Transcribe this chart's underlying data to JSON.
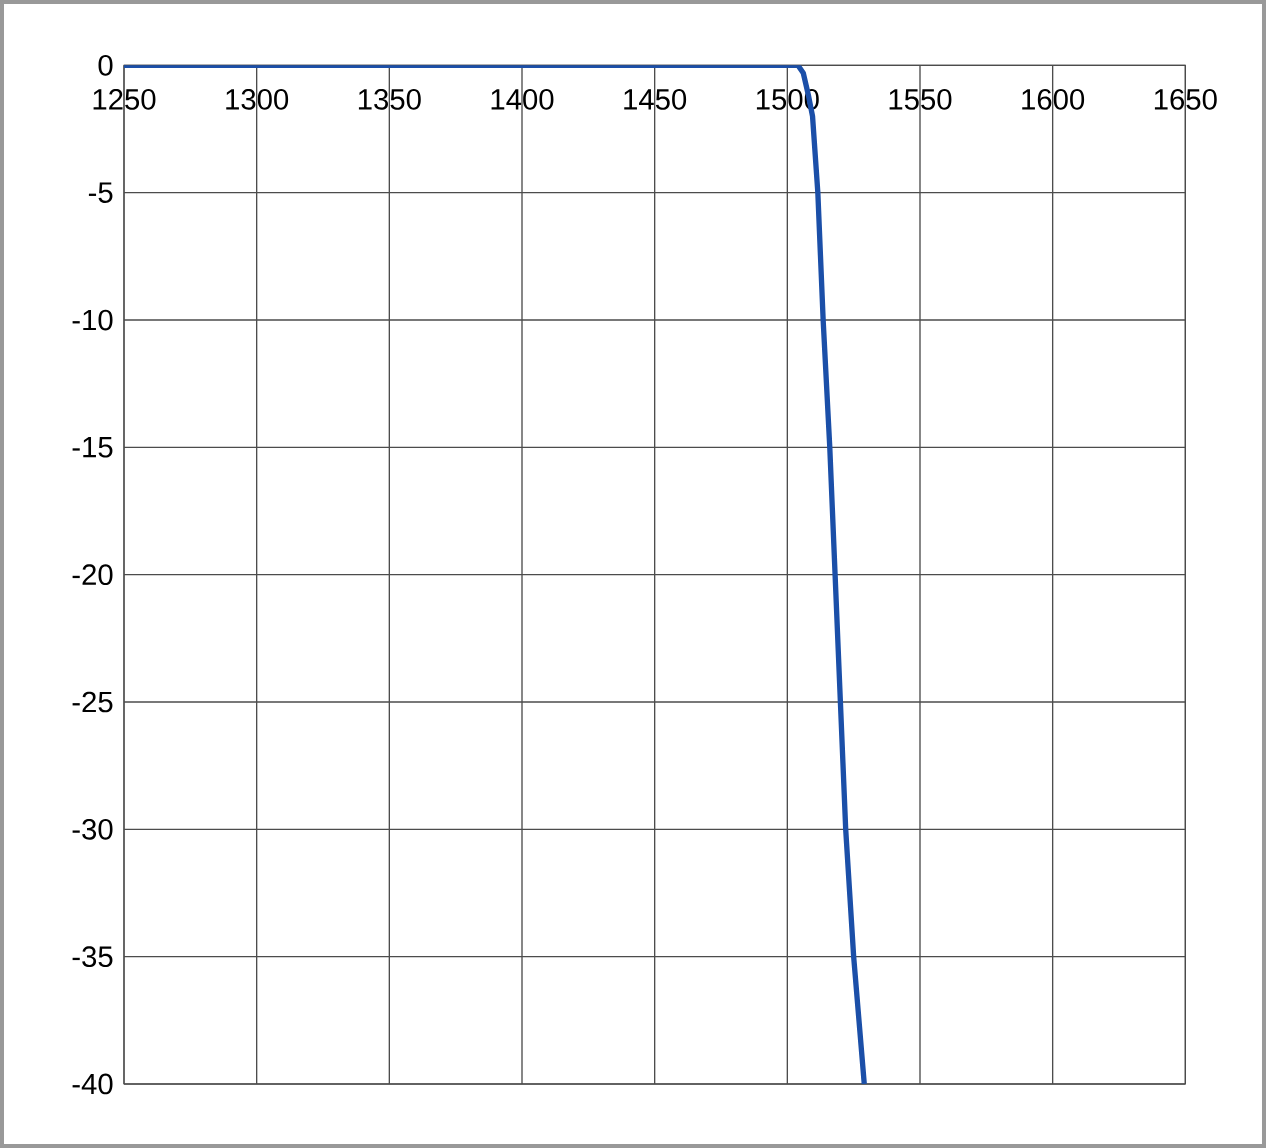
{
  "chart_data": {
    "type": "line",
    "x": [
      1250,
      1500,
      1504,
      1506,
      1508,
      1509.5,
      1511.5,
      1513.5,
      1516,
      1518,
      1520,
      1522,
      1525,
      1529
    ],
    "series": [
      {
        "color": "#1b4fa8",
        "values": [
          0,
          0,
          0,
          -0.3,
          -1.2,
          -2,
          -5,
          -10,
          -15,
          -20,
          -25,
          -30,
          -35,
          -40
        ]
      }
    ],
    "xlim": [
      1250,
      1650
    ],
    "ylim": [
      -40,
      0
    ],
    "xticks": [
      1250,
      1300,
      1350,
      1400,
      1450,
      1500,
      1550,
      1600,
      1650
    ],
    "yticks": [
      0,
      -5,
      -10,
      -15,
      -20,
      -25,
      -30,
      -35,
      -40
    ],
    "grid": true,
    "marker": "none",
    "line_style": "solid"
  }
}
